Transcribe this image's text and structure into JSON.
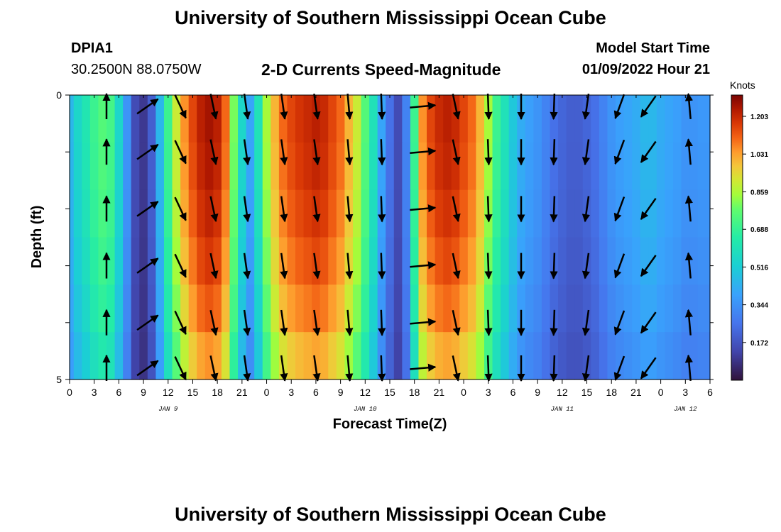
{
  "header": {
    "title": "University of Southern Mississippi Ocean Cube",
    "station_id": "DPIA1",
    "coordinates": "30.2500N  88.0750W",
    "subtitle": "2-D Currents Speed-Magnitude",
    "model_start_label": "Model Start Time",
    "model_start_value": "01/09/2022 Hour 21"
  },
  "footer": {
    "title": "University of Southern Mississippi Ocean Cube"
  },
  "chart_data": {
    "type": "heatmap",
    "title": "2-D Currents Speed-Magnitude",
    "xlabel": "Forecast Time(Z)",
    "ylabel": "Depth (ft)",
    "colorbar_label": "Knots",
    "colorbar_ticks": [
      0.172,
      0.344,
      0.516,
      0.688,
      0.859,
      1.031,
      1.203
    ],
    "colorbar_tick_labels": [
      "0.172",
      "0.344",
      "0.516",
      "0.688",
      "0.859",
      "1.031",
      "1.203"
    ],
    "colorbar_range": [
      0.0,
      1.3
    ],
    "ylim": [
      0,
      5
    ],
    "y_tick_labels": [
      {
        "value": 0,
        "label": "0"
      },
      {
        "value": 5,
        "label": "5"
      }
    ],
    "x_range_hours": [
      0,
      78
    ],
    "x_tick_labels": [
      "0",
      "3",
      "6",
      "9",
      "12",
      "15",
      "18",
      "21",
      "0",
      "3",
      "6",
      "9",
      "12",
      "15",
      "18",
      "21",
      "0",
      "3",
      "6",
      "9",
      "12",
      "15",
      "18",
      "21",
      "0",
      "3",
      "6"
    ],
    "date_labels": [
      {
        "hour": 12,
        "label": "JAN 9"
      },
      {
        "hour": 36,
        "label": "JAN 10"
      },
      {
        "hour": 60,
        "label": "JAN 11"
      },
      {
        "hour": 75,
        "label": "JAN 12"
      }
    ],
    "speed_profile": {
      "hours": [
        0,
        1,
        2,
        3,
        4,
        5,
        6,
        7,
        8,
        9,
        10,
        11,
        12,
        13,
        14,
        15,
        16,
        17,
        18,
        19,
        20,
        21,
        22,
        23,
        24,
        25,
        26,
        27,
        28,
        29,
        30,
        31,
        32,
        33,
        34,
        35,
        36,
        37,
        38,
        39,
        40,
        41,
        42,
        43,
        44,
        45,
        46,
        47,
        48,
        49,
        50,
        51,
        52,
        53,
        54,
        55,
        56,
        57,
        58,
        59,
        60,
        61,
        62,
        63,
        64,
        65,
        66,
        67,
        68,
        69,
        70,
        71,
        72,
        73,
        74,
        75,
        76,
        77,
        78
      ],
      "surface_knots": [
        0.45,
        0.55,
        0.62,
        0.7,
        0.75,
        0.72,
        0.55,
        0.35,
        0.15,
        0.1,
        0.2,
        0.45,
        0.7,
        0.9,
        1.05,
        1.15,
        1.22,
        1.25,
        1.22,
        1.1,
        0.8,
        0.55,
        0.4,
        0.6,
        0.85,
        1.0,
        1.1,
        1.15,
        1.18,
        1.2,
        1.22,
        1.2,
        1.15,
        1.1,
        1.0,
        0.9,
        0.75,
        0.6,
        0.4,
        0.25,
        0.15,
        0.3,
        0.7,
        1.05,
        1.15,
        1.2,
        1.22,
        1.2,
        1.15,
        1.1,
        1.0,
        0.85,
        0.7,
        0.6,
        0.5,
        0.42,
        0.38,
        0.35,
        0.3,
        0.25,
        0.22,
        0.2,
        0.2,
        0.22,
        0.25,
        0.3,
        0.35,
        0.38,
        0.4,
        0.42,
        0.45,
        0.45,
        0.42,
        0.4,
        0.38,
        0.35,
        0.35,
        0.36,
        0.36
      ],
      "depth_factor": [
        1.0,
        0.99,
        0.97,
        0.94,
        0.9,
        0.84
      ]
    },
    "arrow_rows_depth_ft": [
      0.05,
      1.0,
      2.0,
      3.0,
      4.0,
      4.85
    ],
    "arrow_columns": [
      {
        "hour": 4.5,
        "dir_deg": 0
      },
      {
        "hour": 9.5,
        "dir_deg": 55
      },
      {
        "hour": 13.5,
        "dir_deg": 155
      },
      {
        "hour": 17.5,
        "dir_deg": 168
      },
      {
        "hour": 21.5,
        "dir_deg": 172
      },
      {
        "hour": 26,
        "dir_deg": 172
      },
      {
        "hour": 30,
        "dir_deg": 172
      },
      {
        "hour": 34,
        "dir_deg": 175
      },
      {
        "hour": 38,
        "dir_deg": 178
      },
      {
        "hour": 43,
        "dir_deg": 85
      },
      {
        "hour": 47,
        "dir_deg": 168
      },
      {
        "hour": 51,
        "dir_deg": 178
      },
      {
        "hour": 55,
        "dir_deg": 180
      },
      {
        "hour": 59,
        "dir_deg": 182
      },
      {
        "hour": 63,
        "dir_deg": 188
      },
      {
        "hour": 67,
        "dir_deg": 200
      },
      {
        "hour": 70.5,
        "dir_deg": 215
      },
      {
        "hour": 75.5,
        "dir_deg": 355
      }
    ],
    "colors": {
      "low": "#30123b",
      "mid": "#46f884",
      "high": "#7a0403"
    }
  }
}
